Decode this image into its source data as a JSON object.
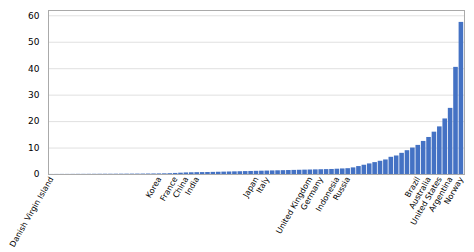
{
  "chart_data": {
    "type": "bar",
    "categories": [
      "Danish Virgin Island",
      null,
      null,
      null,
      null,
      null,
      null,
      null,
      null,
      null,
      null,
      null,
      null,
      null,
      null,
      null,
      null,
      null,
      null,
      null,
      "Korea",
      null,
      null,
      "France",
      null,
      "China",
      null,
      "India",
      null,
      null,
      null,
      null,
      null,
      null,
      null,
      null,
      null,
      null,
      "Japan",
      null,
      "Italy",
      null,
      null,
      null,
      null,
      null,
      null,
      null,
      "United Kingdom",
      null,
      "Germany",
      null,
      null,
      "Indonesia",
      null,
      "Russia",
      null,
      null,
      null,
      null,
      null,
      null,
      null,
      null,
      null,
      null,
      null,
      null,
      "Brazil",
      null,
      "Australia",
      null,
      "United States",
      null,
      "Argentina",
      null,
      "Norway"
    ],
    "values": [
      0.02,
      0.03,
      0.04,
      0.04,
      0.05,
      0.06,
      0.06,
      0.07,
      0.08,
      0.09,
      0.1,
      0.1,
      0.11,
      0.12,
      0.13,
      0.14,
      0.15,
      0.16,
      0.18,
      0.2,
      0.22,
      0.25,
      0.3,
      0.4,
      0.5,
      0.6,
      0.65,
      0.7,
      0.72,
      0.75,
      0.8,
      0.85,
      0.9,
      0.95,
      1.0,
      1.05,
      1.1,
      1.15,
      1.2,
      1.25,
      1.3,
      1.35,
      1.4,
      1.45,
      1.5,
      1.55,
      1.6,
      1.65,
      1.7,
      1.75,
      1.8,
      1.85,
      1.9,
      2.0,
      2.1,
      2.2,
      2.5,
      3.0,
      3.5,
      4.0,
      4.5,
      5.0,
      5.5,
      6.5,
      7.0,
      8.0,
      9.0,
      10.0,
      11.0,
      12.5,
      14.0,
      16.0,
      18.0,
      21.0,
      25.0,
      40.5,
      57.5
    ],
    "color": "#4472C4",
    "ylim": [
      0,
      62
    ],
    "yticks": [
      0,
      10,
      20,
      30,
      40,
      50,
      60
    ],
    "grid": true
  }
}
